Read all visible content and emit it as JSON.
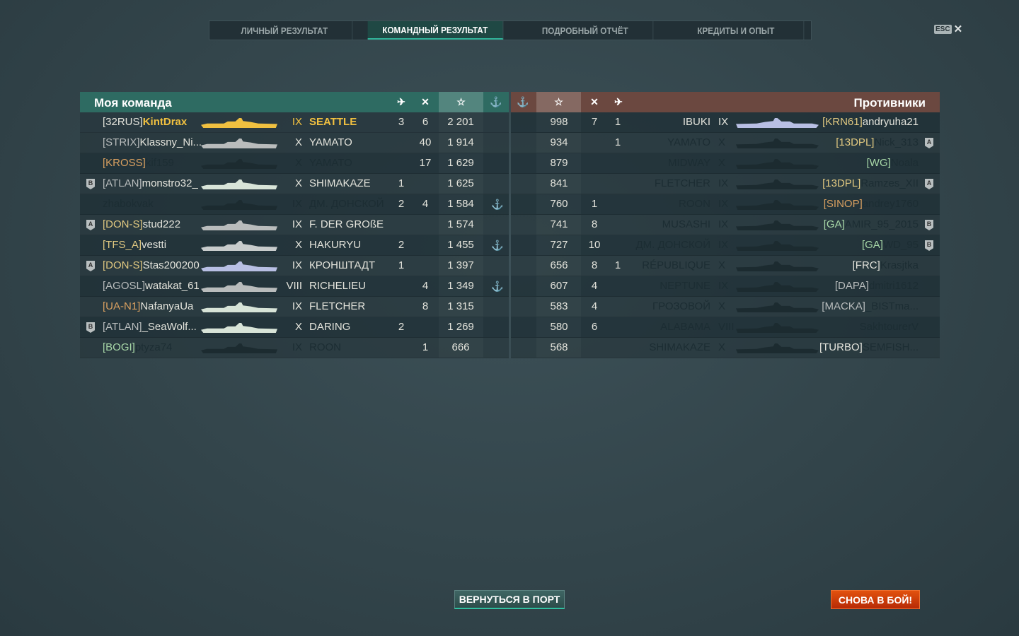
{
  "tabs": [
    {
      "label": "ЛИЧНЫЙ РЕЗУЛЬТАТ",
      "active": false
    },
    {
      "label": "КОМАНДНЫЙ РЕЗУЛЬТАТ",
      "active": true
    },
    {
      "label": "ПОДРОБНЫЙ ОТЧЁТ",
      "active": false
    },
    {
      "label": "КРЕДИТЫ И ОПЫТ",
      "active": false
    }
  ],
  "close": {
    "key": "ESC",
    "icon": "close-icon",
    "glyph": "✕"
  },
  "header_icons": {
    "planes": "plane-icon",
    "frags": "crossed-swords-icon",
    "exp": "star-icon",
    "medal": "anchor-medal-icon"
  },
  "colors": {
    "ally_header": "#2e6b62",
    "enemy_header": "#6b4840",
    "me": "#f0c040",
    "alive": "#e4e4dc",
    "dead": "#1c2d33"
  },
  "my_team": {
    "title": "Моя команда",
    "players": [
      {
        "badge": "",
        "clan": "[32RUS]",
        "clan_color": "#e4e4dc",
        "name": "KintDrax",
        "alive": true,
        "me": true,
        "tier": "IX",
        "ship": "SEATTLE",
        "sil_color": "#f0c040",
        "planes": "3",
        "frags": "6",
        "exp": "2 201",
        "medal": false
      },
      {
        "badge": "",
        "clan": "[STRIX]",
        "clan_color": "#b8bcbc",
        "name": "Klassny_Ni...",
        "alive": true,
        "tier": "X",
        "ship": "YAMATO",
        "sil_color": "#b9bcbc",
        "planes": "",
        "frags": "40",
        "exp": "1 914",
        "medal": false
      },
      {
        "badge": "",
        "clan": "[KROSS]",
        "clan_color": "#d9a060",
        "name": "kif159",
        "alive": false,
        "tier": "X",
        "ship": "YAMATO",
        "sil_color": "#1c2b30",
        "planes": "",
        "frags": "17",
        "exp": "1 629",
        "medal": false
      },
      {
        "badge": "B",
        "clan": "[ATLAN]",
        "clan_color": "#b8bcbc",
        "name": "monstro32_",
        "alive": true,
        "tier": "X",
        "ship": "SHIMAKAZE",
        "sil_color": "#d8e4d8",
        "planes": "1",
        "frags": "",
        "exp": "1 625",
        "medal": false
      },
      {
        "badge": "",
        "clan": "",
        "clan_color": "",
        "name": "zhabokvak",
        "alive": false,
        "tier": "IX",
        "ship": "ДМ. ДОНСКОЙ",
        "sil_color": "#1c2b30",
        "planes": "2",
        "frags": "4",
        "exp": "1 584",
        "medal": true
      },
      {
        "badge": "A",
        "clan": "[DON-S]",
        "clan_color": "#e0c880",
        "name": "stud222",
        "alive": true,
        "tier": "IX",
        "ship": "F. DER GROßE",
        "sil_color": "#b9bcbc",
        "planes": "",
        "frags": "",
        "exp": "1 574",
        "medal": false
      },
      {
        "badge": "",
        "clan": "[TFS_A]",
        "clan_color": "#e0c880",
        "name": "vestti",
        "alive": true,
        "tier": "X",
        "ship": "HAKURYU",
        "sil_color": "#c8cccc",
        "planes": "2",
        "frags": "",
        "exp": "1 455",
        "medal": true
      },
      {
        "badge": "A",
        "clan": "[DON-S]",
        "clan_color": "#e0c880",
        "name": "Stas200200",
        "alive": true,
        "tier": "IX",
        "ship": "КРОНШТАДТ",
        "sil_color": "#b8bfe4",
        "planes": "1",
        "frags": "",
        "exp": "1 397",
        "medal": false
      },
      {
        "badge": "",
        "clan": "[AGOSL]",
        "clan_color": "#b8bcbc",
        "name": "watakat_61",
        "alive": true,
        "tier": "VIII",
        "ship": "RICHELIEU",
        "sil_color": "#b9bcbc",
        "planes": "",
        "frags": "4",
        "exp": "1 349",
        "medal": true
      },
      {
        "badge": "",
        "clan": "[UA-N1]",
        "clan_color": "#d9a060",
        "name": "NafanyaUa",
        "alive": true,
        "tier": "IX",
        "ship": "FLETCHER",
        "sil_color": "#d8e4d8",
        "planes": "",
        "frags": "8",
        "exp": "1 315",
        "medal": false
      },
      {
        "badge": "B",
        "clan": "[ATLAN]",
        "clan_color": "#b8bcbc",
        "name": "_SeaWolf...",
        "alive": true,
        "tier": "X",
        "ship": "DARING",
        "sil_color": "#d8e4d8",
        "planes": "2",
        "frags": "",
        "exp": "1 269",
        "medal": false
      },
      {
        "badge": "",
        "clan": "[BOGI]",
        "clan_color": "#a8d8a8",
        "name": "ptyza74",
        "alive": false,
        "tier": "IX",
        "ship": "ROON",
        "sil_color": "#1c2b30",
        "planes": "",
        "frags": "1",
        "exp": "666",
        "medal": false
      }
    ]
  },
  "enemy_team": {
    "title": "Противники",
    "players": [
      {
        "badge": "",
        "clan": "[KRN61]",
        "clan_color": "#e0c880",
        "name": "andryuha21",
        "alive": true,
        "tier": "IX",
        "ship": "IBUKI",
        "sil_color": "#b8bfe4",
        "planes": "1",
        "frags": "7",
        "exp": "998",
        "medal": false
      },
      {
        "badge": "A",
        "clan": "[13DPL]",
        "clan_color": "#e0c880",
        "name": "Nick_313",
        "alive": false,
        "tier": "X",
        "ship": "YAMATO",
        "sil_color": "#1c2b30",
        "planes": "1",
        "frags": "",
        "exp": "934",
        "medal": false
      },
      {
        "badge": "",
        "clan": "[WG]",
        "clan_color": "#a8d8a8",
        "name": "Noala",
        "alive": false,
        "tier": "X",
        "ship": "MIDWAY",
        "sil_color": "#1c2b30",
        "planes": "",
        "frags": "",
        "exp": "879",
        "medal": false
      },
      {
        "badge": "A",
        "clan": "[13DPL]",
        "clan_color": "#e0c880",
        "name": "Ramzes_XII",
        "alive": false,
        "tier": "IX",
        "ship": "FLETCHER",
        "sil_color": "#1c2b30",
        "planes": "",
        "frags": "",
        "exp": "841",
        "medal": false
      },
      {
        "badge": "",
        "clan": "[SINOP]",
        "clan_color": "#d9a060",
        "name": "andrey1760",
        "alive": false,
        "tier": "IX",
        "ship": "ROON",
        "sil_color": "#1c2b30",
        "planes": "",
        "frags": "1",
        "exp": "760",
        "medal": false
      },
      {
        "badge": "B",
        "clan": "[GA]",
        "clan_color": "#a8d8a8",
        "name": "AMIR_95_2015",
        "alive": false,
        "tier": "IX",
        "ship": "MUSASHI",
        "sil_color": "#1c2b30",
        "planes": "",
        "frags": "8",
        "exp": "741",
        "medal": false
      },
      {
        "badge": "B",
        "clan": "[GA]",
        "clan_color": "#a8d8a8",
        "name": "WD_95",
        "alive": false,
        "tier": "IX",
        "ship": "ДМ. ДОНСКОЙ",
        "sil_color": "#1c2b30",
        "planes": "",
        "frags": "10",
        "exp": "727",
        "medal": false
      },
      {
        "badge": "",
        "clan": "[FRC]",
        "clan_color": "#e4e4dc",
        "name": "Krasjtka",
        "alive": false,
        "tier": "X",
        "ship": "RÉPUBLIQUE",
        "sil_color": "#1c2b30",
        "planes": "1",
        "frags": "8",
        "exp": "656",
        "medal": false
      },
      {
        "badge": "",
        "clan": "[DAPA]",
        "clan_color": "#b8bcbc",
        "name": "dmitri1612",
        "alive": false,
        "tier": "IX",
        "ship": "NEPTUNE",
        "sil_color": "#1c2b30",
        "planes": "",
        "frags": "4",
        "exp": "607",
        "medal": false
      },
      {
        "badge": "",
        "clan": "[MACKA]",
        "clan_color": "#b8bcbc",
        "name": "_BISTma...",
        "alive": false,
        "tier": "X",
        "ship": "ГРОЗОВОЙ",
        "sil_color": "#1c2b30",
        "planes": "",
        "frags": "4",
        "exp": "583",
        "medal": false
      },
      {
        "badge": "",
        "clan": "",
        "clan_color": "",
        "name": "SakhtourerV",
        "alive": false,
        "tier": "VIII",
        "ship": "ALABAMA",
        "sil_color": "#1c2b30",
        "planes": "",
        "frags": "6",
        "exp": "580",
        "medal": false
      },
      {
        "badge": "",
        "clan": "[TURBO]",
        "clan_color": "#e4e4dc",
        "name": "SEMFISH...",
        "alive": false,
        "tier": "X",
        "ship": "SHIMAKAZE",
        "sil_color": "#1c2b30",
        "planes": "",
        "frags": "",
        "exp": "568",
        "medal": false
      }
    ]
  },
  "buttons": {
    "port": "ВЕРНУТЬСЯ В ПОРТ",
    "battle": "СНОВА В БОЙ!"
  }
}
